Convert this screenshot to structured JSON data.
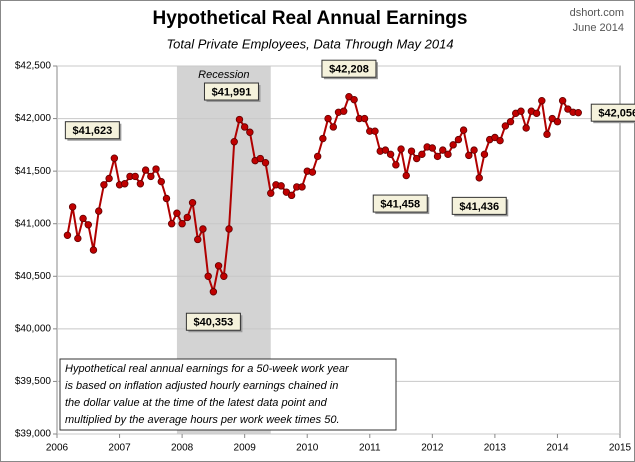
{
  "chart_data": {
    "type": "line",
    "title": "Hypothetical Real Annual Earnings",
    "subtitle": "Total Private Employees, Data Through May 2014",
    "source": [
      "dshort.com",
      "June 2014"
    ],
    "x": [
      2006.167,
      2006.25,
      2006.333,
      2006.417,
      2006.5,
      2006.583,
      2006.667,
      2006.75,
      2006.833,
      2006.917,
      2007,
      2007.083,
      2007.167,
      2007.25,
      2007.333,
      2007.417,
      2007.5,
      2007.583,
      2007.667,
      2007.75,
      2007.833,
      2007.917,
      2008,
      2008.083,
      2008.167,
      2008.25,
      2008.333,
      2008.417,
      2008.5,
      2008.583,
      2008.667,
      2008.75,
      2008.833,
      2008.917,
      2009,
      2009.083,
      2009.167,
      2009.25,
      2009.333,
      2009.417,
      2009.5,
      2009.583,
      2009.667,
      2009.75,
      2009.833,
      2009.917,
      2010,
      2010.083,
      2010.167,
      2010.25,
      2010.333,
      2010.417,
      2010.5,
      2010.583,
      2010.667,
      2010.75,
      2010.833,
      2010.917,
      2011,
      2011.083,
      2011.167,
      2011.25,
      2011.333,
      2011.417,
      2011.5,
      2011.583,
      2011.667,
      2011.75,
      2011.833,
      2011.917,
      2012,
      2012.083,
      2012.167,
      2012.25,
      2012.333,
      2012.417,
      2012.5,
      2012.583,
      2012.667,
      2012.75,
      2012.833,
      2012.917,
      2013,
      2013.083,
      2013.167,
      2013.25,
      2013.333,
      2013.417,
      2013.5,
      2013.583,
      2013.667,
      2013.75,
      2013.833,
      2013.917,
      2014,
      2014.083,
      2014.167,
      2014.25,
      2014.333
    ],
    "series": [
      {
        "color": "#b00000",
        "values": [
          40890,
          41160,
          40860,
          41050,
          40990,
          40750,
          41120,
          41370,
          41430,
          41623,
          41370,
          41380,
          41450,
          41450,
          41380,
          41510,
          41450,
          41520,
          41400,
          41240,
          41000,
          41100,
          41000,
          41060,
          41200,
          40850,
          40950,
          40500,
          40353,
          40600,
          40500,
          40950,
          41780,
          41991,
          41920,
          41870,
          41600,
          41620,
          41580,
          41290,
          41370,
          41360,
          41300,
          41270,
          41350,
          41350,
          41500,
          41490,
          41640,
          41810,
          42000,
          41920,
          42060,
          42070,
          42208,
          42180,
          42000,
          42000,
          41880,
          41880,
          41690,
          41700,
          41660,
          41560,
          41710,
          41458,
          41690,
          41620,
          41660,
          41730,
          41720,
          41640,
          41700,
          41660,
          41750,
          41800,
          41890,
          41650,
          41700,
          41436,
          41660,
          41800,
          41820,
          41790,
          41930,
          41970,
          42050,
          42070,
          41910,
          42070,
          42050,
          42170,
          41850,
          42000,
          41970,
          42170,
          42090,
          42060,
          42056
        ]
      }
    ],
    "xlim": [
      2006,
      2015
    ],
    "xticks": [
      2006,
      2007,
      2008,
      2009,
      2010,
      2011,
      2012,
      2013,
      2014,
      2015
    ],
    "ylim": [
      39000,
      42500
    ],
    "yticks": [
      {
        "value": 39000,
        "label": "$39,000"
      },
      {
        "value": 39500,
        "label": "$39,500"
      },
      {
        "value": 40000,
        "label": "$40,000"
      },
      {
        "value": 40500,
        "label": "$40,500"
      },
      {
        "value": 41000,
        "label": "$41,000"
      },
      {
        "value": 41500,
        "label": "$41,500"
      },
      {
        "value": 42000,
        "label": "$42,000"
      },
      {
        "value": 42500,
        "label": "$42,500"
      }
    ],
    "grid": true,
    "recession": {
      "label": "Recession",
      "x": [
        2007.917,
        2009.417
      ]
    },
    "annotations": [
      {
        "x": 2006.917,
        "y": 41623,
        "label": "$41,623"
      },
      {
        "x": 2008.917,
        "y": 41991,
        "label": "$41,991"
      },
      {
        "x": 2008.5,
        "y": 40353,
        "label": "$40,353"
      },
      {
        "x": 2010.667,
        "y": 42208,
        "label": "$42,208"
      },
      {
        "x": 2011.583,
        "y": 41458,
        "label": "$41,458"
      },
      {
        "x": 2012.75,
        "y": 41436,
        "label": "$41,436"
      },
      {
        "x": 2014.333,
        "y": 42056,
        "label": "$42,056"
      }
    ],
    "note": [
      "Hypothetical real annual earnings for a 50-week work year",
      "is based on inflation adjusted hourly earnings chained in",
      "the dollar value at the time of the latest data point and",
      "multiplied by the average hours per work week times 50."
    ]
  }
}
